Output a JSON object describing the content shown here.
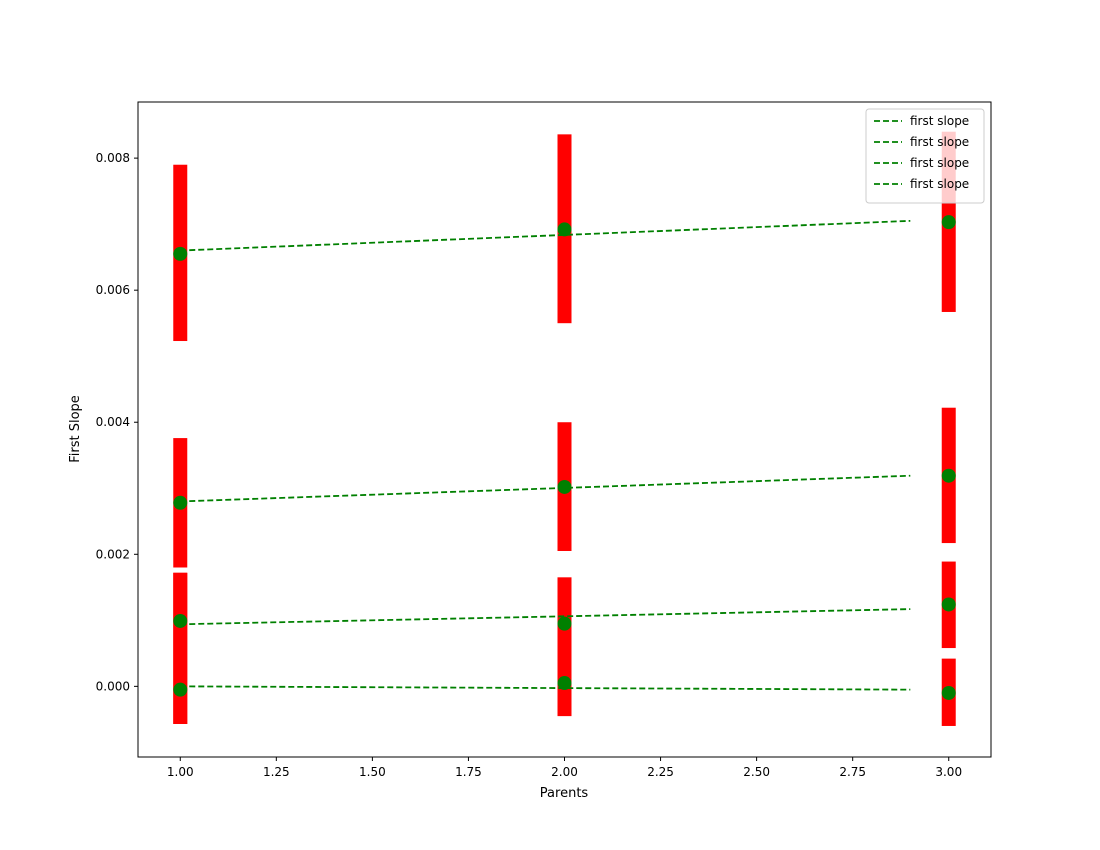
{
  "chart_data": {
    "type": "scatter",
    "title": "",
    "xlabel": "Parents",
    "ylabel": "First Slope",
    "xlim": [
      0.89,
      3.11
    ],
    "ylim": [
      -0.00107,
      0.00885
    ],
    "xticks": [
      "1.00",
      "1.25",
      "1.50",
      "1.75",
      "2.00",
      "2.25",
      "2.50",
      "2.75",
      "3.00"
    ],
    "xtick_values": [
      1.0,
      1.25,
      1.5,
      1.75,
      2.0,
      2.25,
      2.5,
      2.75,
      3.0
    ],
    "yticks": [
      "0.000",
      "0.002",
      "0.004",
      "0.006",
      "0.008"
    ],
    "ytick_values": [
      0.0,
      0.002,
      0.004,
      0.006,
      0.008
    ],
    "grid": false,
    "legend": {
      "placement": "top-right",
      "entries": [
        "first slope",
        "first slope",
        "first slope",
        "first slope"
      ]
    },
    "colors": {
      "errorbar": "#ff0000",
      "points": "#008000",
      "fit_line": "#008000"
    },
    "series": [
      {
        "x": [
          1,
          2,
          3
        ],
        "y": [
          0.00655,
          0.00692,
          0.00703
        ],
        "err_low": [
          0.00523,
          0.0055,
          0.00567
        ],
        "err_high": [
          0.0079,
          0.00836,
          0.0084
        ],
        "fit_x": [
          1,
          2.9
        ],
        "fit_y": [
          0.0066,
          0.00705
        ]
      },
      {
        "x": [
          1,
          2,
          3
        ],
        "y": [
          0.00278,
          0.00302,
          0.00319
        ],
        "err_low": [
          0.0018,
          0.00205,
          0.00217
        ],
        "err_high": [
          0.00376,
          0.004,
          0.00422
        ],
        "fit_x": [
          1,
          2.9
        ],
        "fit_y": [
          0.0028,
          0.00319
        ]
      },
      {
        "x": [
          1,
          2,
          3
        ],
        "y": [
          0.00099,
          0.00095,
          0.00124
        ],
        "err_low": [
          -0.00057,
          -0.00045,
          0.00058
        ],
        "err_high": [
          0.00172,
          0.00165,
          0.00189
        ],
        "fit_x": [
          1,
          2.9
        ],
        "fit_y": [
          0.00094,
          0.00117
        ]
      },
      {
        "x": [
          1,
          2,
          3
        ],
        "y": [
          -5e-05,
          5e-05,
          -0.0001
        ],
        "err_low": [
          -0.00057,
          -0.00045,
          -0.0006
        ],
        "err_high": [
          0.00172,
          0.00165,
          0.00042
        ],
        "fit_x": [
          1,
          2.9
        ],
        "fit_y": [
          0.0,
          -5e-05
        ]
      }
    ]
  }
}
